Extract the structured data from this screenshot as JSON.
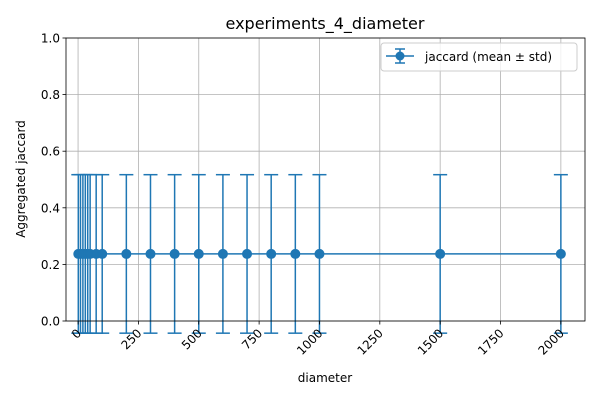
{
  "chart_data": {
    "type": "line",
    "title": "experiments_4_diameter",
    "xlabel": "diameter",
    "ylabel": "Aggregated jaccard",
    "xlim": [
      -50,
      2100
    ],
    "ylim": [
      0,
      1.0
    ],
    "x_ticks": [
      0,
      250,
      500,
      750,
      1000,
      1250,
      1500,
      1750,
      2000
    ],
    "x_tick_labels": [
      "0",
      "250",
      "500",
      "750",
      "1000",
      "1250",
      "1500",
      "1750",
      "2000"
    ],
    "x_tick_rotation": "45 degrees",
    "y_ticks": [
      0.0,
      0.2,
      0.4,
      0.6,
      0.8,
      1.0
    ],
    "y_tick_labels": [
      "0.0",
      "0.2",
      "0.4",
      "0.6",
      "0.8",
      "1.0"
    ],
    "grid": true,
    "legend_position": "top-right",
    "series": [
      {
        "name": "jaccard (mean ± std)",
        "color": "#1f77b4",
        "marker": "circle",
        "error_bars": true,
        "x": [
          1,
          10,
          20,
          30,
          40,
          50,
          75,
          100,
          200,
          300,
          400,
          500,
          600,
          700,
          800,
          900,
          1000,
          1500,
          2000
        ],
        "y": [
          0.237,
          0.237,
          0.237,
          0.237,
          0.237,
          0.237,
          0.237,
          0.237,
          0.237,
          0.237,
          0.237,
          0.237,
          0.237,
          0.237,
          0.237,
          0.237,
          0.237,
          0.237,
          0.237
        ],
        "yerr": [
          0.28,
          0.28,
          0.28,
          0.28,
          0.28,
          0.28,
          0.28,
          0.28,
          0.28,
          0.28,
          0.28,
          0.28,
          0.28,
          0.28,
          0.28,
          0.28,
          0.28,
          0.28,
          0.28
        ]
      }
    ]
  }
}
